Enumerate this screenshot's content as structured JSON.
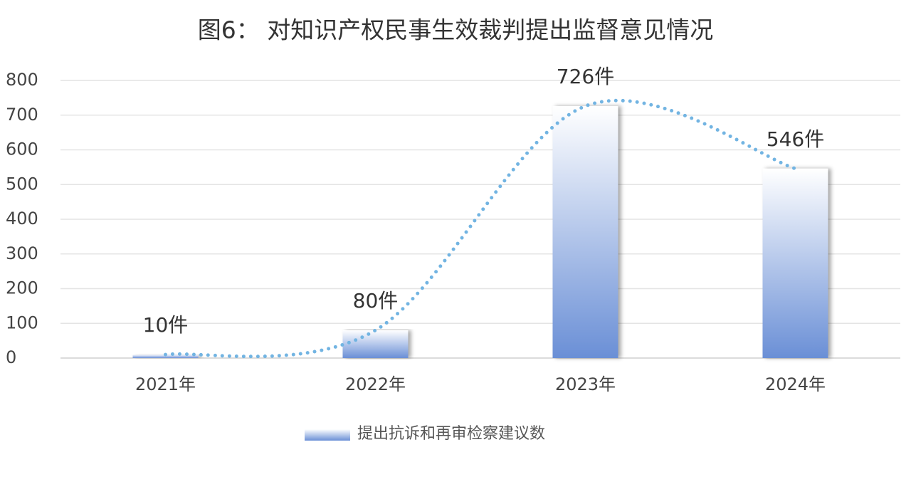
{
  "chart_data": {
    "type": "bar",
    "title": "图6：  对知识产权民事生效裁判提出监督意见情况",
    "categories": [
      "2021年",
      "2022年",
      "2023年",
      "2024年"
    ],
    "series": [
      {
        "name": "提出抗诉和再审检察建议数",
        "color": "#6a8fd6",
        "values": [
          10,
          80,
          726,
          546
        ],
        "value_labels": [
          "10件",
          "80件",
          "726件",
          "546件"
        ]
      }
    ],
    "trend_color": "#72b4e2",
    "ylim": [
      0,
      800
    ],
    "yticks": [
      0,
      100,
      200,
      300,
      400,
      500,
      600,
      700,
      800
    ],
    "grid": true,
    "legend": "bottom"
  }
}
